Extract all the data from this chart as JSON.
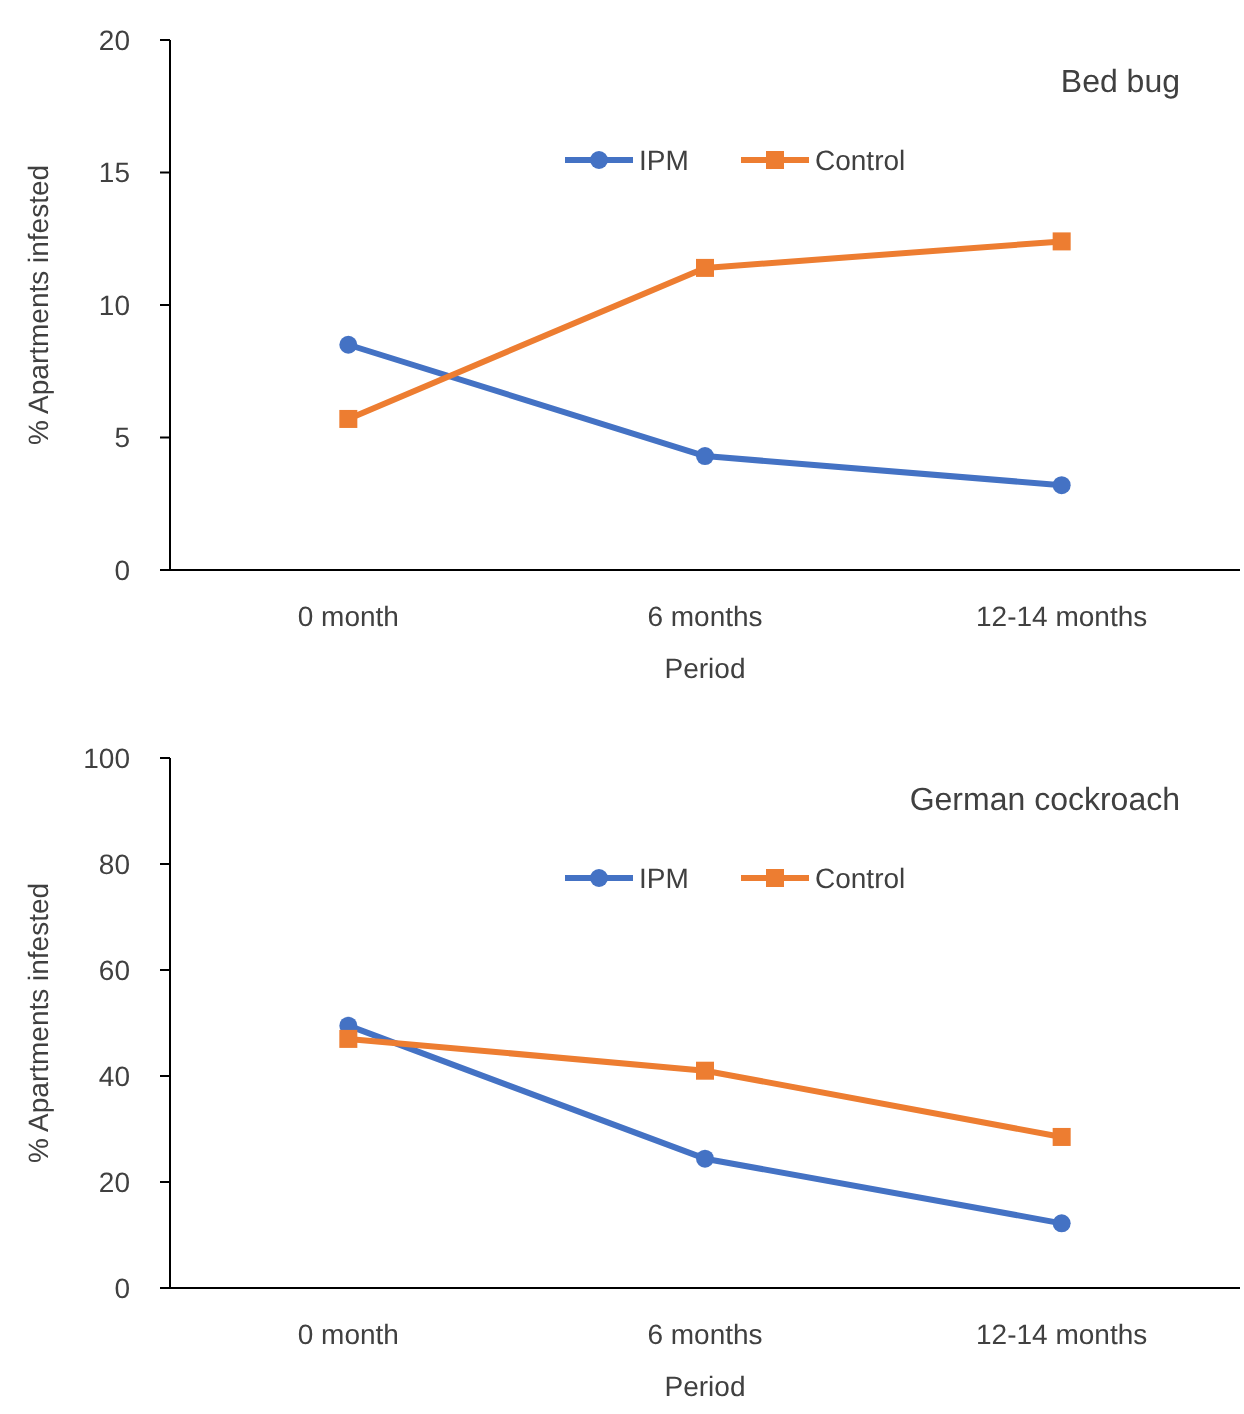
{
  "chart_data": [
    {
      "type": "line",
      "title": "Bed bug",
      "xlabel": "Period",
      "ylabel": "%  Apartments infested",
      "categories": [
        "0 month",
        "6 months",
        "12-14 months"
      ],
      "ylim": [
        0,
        20
      ],
      "yticks": [
        0,
        5,
        10,
        15,
        20
      ],
      "legend": "top",
      "grid": false,
      "series": [
        {
          "name": "IPM",
          "color": "#4472c4",
          "marker": "circle",
          "values": [
            8.5,
            4.3,
            3.2
          ]
        },
        {
          "name": "Control",
          "color": "#ed7d31",
          "marker": "square",
          "values": [
            5.7,
            11.4,
            12.4
          ]
        }
      ]
    },
    {
      "type": "line",
      "title": "German cockroach",
      "xlabel": "Period",
      "ylabel": "%  Apartments infested",
      "categories": [
        "0 month",
        "6 months",
        "12-14 months"
      ],
      "ylim": [
        0,
        100
      ],
      "yticks": [
        0,
        20,
        40,
        60,
        80,
        100
      ],
      "legend": "top",
      "grid": false,
      "series": [
        {
          "name": "IPM",
          "color": "#4472c4",
          "marker": "circle",
          "values": [
            49.5,
            24.4,
            12.2
          ]
        },
        {
          "name": "Control",
          "color": "#ed7d31",
          "marker": "square",
          "values": [
            47,
            41,
            28.5
          ]
        }
      ]
    }
  ]
}
